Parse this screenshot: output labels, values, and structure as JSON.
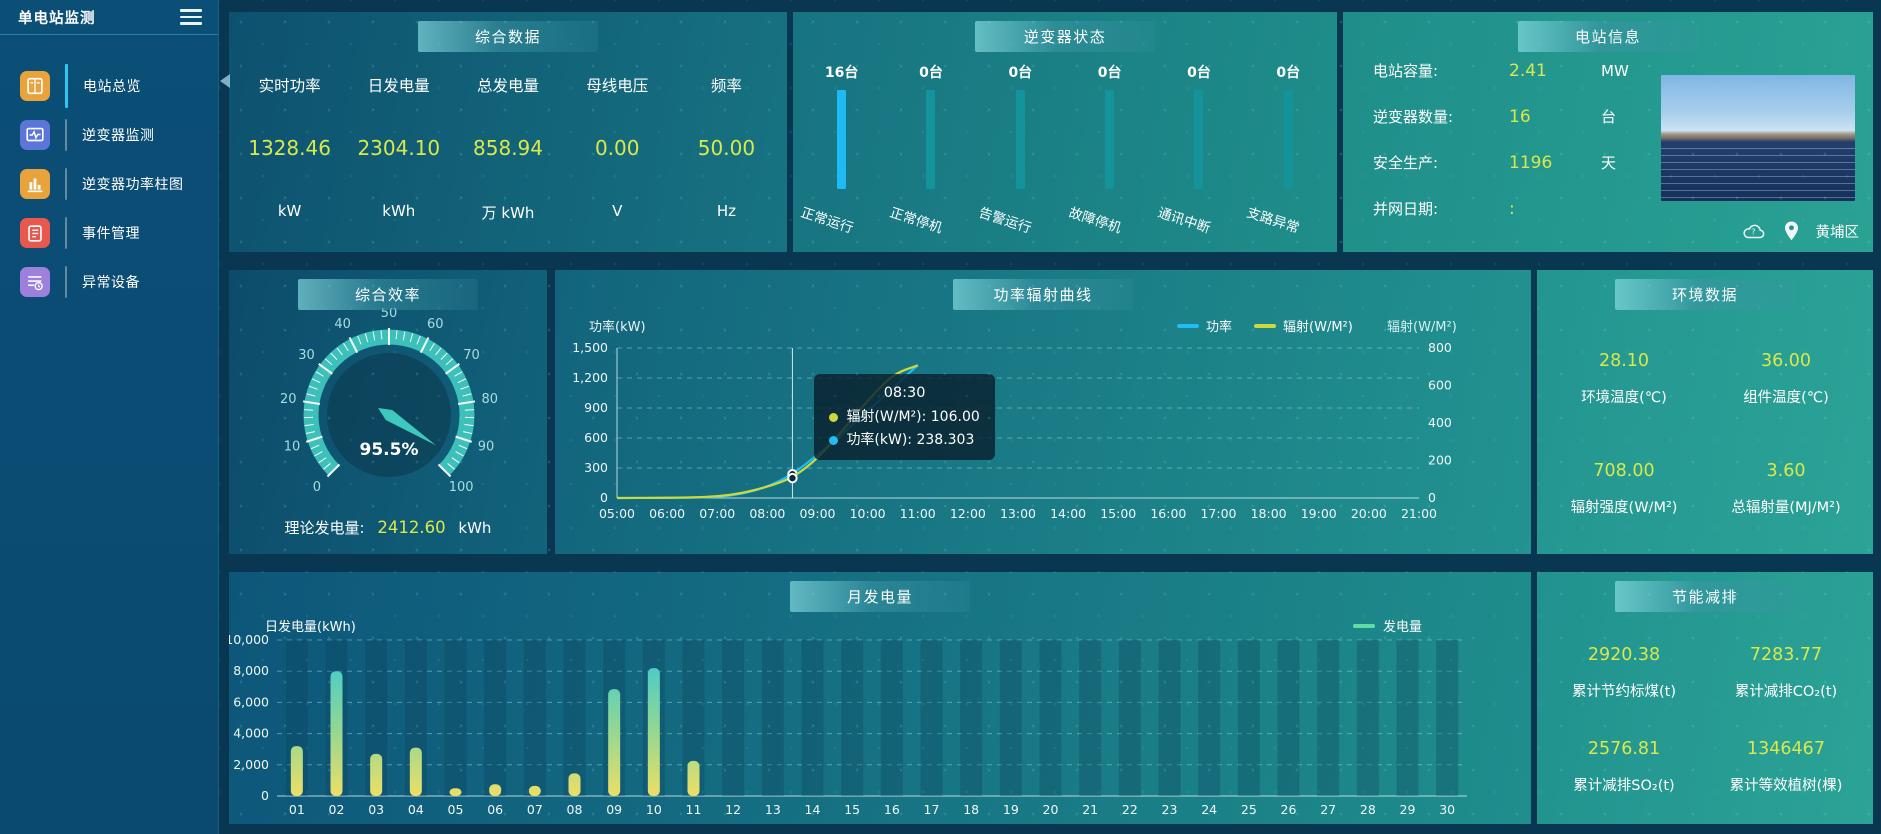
{
  "app": {
    "title": "单电站监测"
  },
  "sidebar": {
    "items": [
      {
        "label": "电站总览",
        "icon": "overview-icon",
        "color": "#e8a33d",
        "active": true
      },
      {
        "label": "逆变器监测",
        "icon": "inverter-monitor-icon",
        "color": "#5b76d8",
        "active": false
      },
      {
        "label": "逆变器功率柱图",
        "icon": "power-bars-icon",
        "color": "#e8a33d",
        "active": false
      },
      {
        "label": "事件管理",
        "icon": "event-management-icon",
        "color": "#e8584f",
        "active": false
      },
      {
        "label": "异常设备",
        "icon": "abnormal-device-icon",
        "color": "#9d7fdc",
        "active": false
      }
    ]
  },
  "summary": {
    "title": "综合数据",
    "metrics": [
      {
        "label": "实时功率",
        "value": "1328.46",
        "unit": "kW"
      },
      {
        "label": "日发电量",
        "value": "2304.10",
        "unit": "kWh"
      },
      {
        "label": "总发电量",
        "value": "858.94",
        "unit": "万 kWh"
      },
      {
        "label": "母线电压",
        "value": "0.00",
        "unit": "V"
      },
      {
        "label": "频率",
        "value": "50.00",
        "unit": "Hz"
      }
    ]
  },
  "inverter_status": {
    "title": "逆变器状态",
    "bars": [
      {
        "count": "16台",
        "label": "正常运行",
        "color": "#1fb9f3"
      },
      {
        "count": "0台",
        "label": "正常停机",
        "color": "#15939b"
      },
      {
        "count": "0台",
        "label": "告警运行",
        "color": "#15939b"
      },
      {
        "count": "0台",
        "label": "故障停机",
        "color": "#15939b"
      },
      {
        "count": "0台",
        "label": "通讯中断",
        "color": "#15939b"
      },
      {
        "count": "0台",
        "label": "支路异常",
        "color": "#15939b"
      }
    ]
  },
  "station_info": {
    "title": "电站信息",
    "rows": [
      {
        "label": "电站容量:",
        "value": "2.41",
        "unit": "MW"
      },
      {
        "label": "逆变器数量:",
        "value": "16",
        "unit": "台"
      },
      {
        "label": "安全生产:",
        "value": "1196",
        "unit": "天"
      },
      {
        "label": "并网日期:",
        "value": ":",
        "unit": ""
      }
    ],
    "location": "黄埔区"
  },
  "efficiency": {
    "title": "综合效率",
    "theory_label": "理论发电量:",
    "theory_value": "2412.60",
    "theory_unit": "kWh"
  },
  "environment": {
    "title": "环境数据",
    "metrics": [
      {
        "value": "28.10",
        "label": "环境温度(℃)"
      },
      {
        "value": "36.00",
        "label": "组件温度(℃)"
      },
      {
        "value": "708.00",
        "label": "辐射强度(W/M²)"
      },
      {
        "value": "3.60",
        "label": "总辐射量(MJ/M²)"
      }
    ]
  },
  "saving": {
    "title": "节能减排",
    "metrics": [
      {
        "value": "2920.38",
        "label": "累计节约标煤(t)"
      },
      {
        "value": "7283.77",
        "label": "累计减排CO₂(t)"
      },
      {
        "value": "2576.81",
        "label": "累计减排SO₂(t)"
      },
      {
        "value": "1346467",
        "label": "累计等效植树(棵)"
      }
    ]
  },
  "chart_data": [
    {
      "id": "power_radiation_curve",
      "type": "line",
      "title": "功率辐射曲线",
      "ylabel_left": "功率(kW)",
      "ylabel_right": "辐射(W/M²)",
      "legend": [
        {
          "name": "功率",
          "color": "#1fbcf5"
        },
        {
          "name": "辐射(W/M²)",
          "color": "#cdd93b"
        }
      ],
      "x_ticks": [
        "05:00",
        "06:00",
        "07:00",
        "08:00",
        "09:00",
        "10:00",
        "11:00",
        "12:00",
        "13:00",
        "14:00",
        "15:00",
        "16:00",
        "17:00",
        "18:00",
        "19:00",
        "20:00",
        "21:00"
      ],
      "x_range": [
        5,
        21
      ],
      "yticks_left": {
        "labels": [
          "0",
          "300",
          "600",
          "900",
          "1,200",
          "1,500"
        ],
        "values": [
          0,
          300,
          600,
          900,
          1200,
          1500
        ],
        "max": 1500
      },
      "yticks_right": {
        "labels": [
          "0",
          "200",
          "400",
          "600",
          "800"
        ],
        "values": [
          0,
          200,
          400,
          600,
          800
        ],
        "max": 800
      },
      "series": [
        {
          "name": "功率",
          "axis": "left",
          "color": "#1fbcf5",
          "points": [
            [
              5,
              0
            ],
            [
              5.5,
              0
            ],
            [
              6,
              1
            ],
            [
              6.5,
              3
            ],
            [
              7,
              10
            ],
            [
              7.5,
              40
            ],
            [
              8,
              110
            ],
            [
              8.5,
              238.303
            ],
            [
              9,
              430
            ],
            [
              9.5,
              640
            ],
            [
              10,
              870
            ],
            [
              10.5,
              1100
            ],
            [
              11,
              1328
            ]
          ]
        },
        {
          "name": "辐射(W/M²)",
          "axis": "right",
          "color": "#cdd93b",
          "points": [
            [
              5,
              0
            ],
            [
              5.5,
              0
            ],
            [
              6,
              1
            ],
            [
              6.5,
              3
            ],
            [
              7,
              8
            ],
            [
              7.5,
              25
            ],
            [
              8,
              60
            ],
            [
              8.5,
              106
            ],
            [
              9,
              210
            ],
            [
              9.5,
              360
            ],
            [
              10,
              520
            ],
            [
              10.5,
              660
            ],
            [
              11,
              708
            ]
          ]
        }
      ],
      "hover": {
        "x": 8.5,
        "time": "08:30",
        "items": [
          {
            "color": "#cdd93b",
            "label": "辐射(W/M²)",
            "value": "106.00"
          },
          {
            "color": "#1fbcf5",
            "label": "功率(kW)",
            "value": "238.303"
          }
        ]
      }
    },
    {
      "id": "efficiency_gauge",
      "type": "gauge",
      "min": 0,
      "max": 100,
      "value": 95.5,
      "display": "95.5%",
      "tick_labels": [
        "0",
        "10",
        "20",
        "30",
        "40",
        "50",
        "60",
        "70",
        "80",
        "90",
        "100"
      ],
      "color": "#3cc0b9"
    },
    {
      "id": "monthly_generation",
      "type": "bar",
      "title": "月发电量",
      "ylabel": "日发电量(kWh)",
      "legend": "发电量",
      "legend_color": "#62dca6",
      "categories": [
        "01",
        "02",
        "03",
        "04",
        "05",
        "06",
        "07",
        "08",
        "09",
        "10",
        "11",
        "12",
        "13",
        "14",
        "15",
        "16",
        "17",
        "18",
        "19",
        "20",
        "21",
        "22",
        "23",
        "24",
        "25",
        "26",
        "27",
        "28",
        "29",
        "30"
      ],
      "values": [
        3200,
        8000,
        2700,
        3100,
        500,
        750,
        650,
        1450,
        6850,
        8200,
        2250,
        0,
        0,
        0,
        0,
        0,
        0,
        0,
        0,
        0,
        0,
        0,
        0,
        0,
        0,
        0,
        0,
        0,
        0,
        0
      ],
      "yticks": {
        "labels": [
          "0",
          "2,000",
          "4,000",
          "6,000",
          "8,000",
          "10,000"
        ],
        "values": [
          0,
          2000,
          4000,
          6000,
          8000,
          10000
        ],
        "max": 10000
      },
      "bar_gradient": [
        "#2fc7dd",
        "#8ed795",
        "#ecdf66"
      ]
    }
  ]
}
